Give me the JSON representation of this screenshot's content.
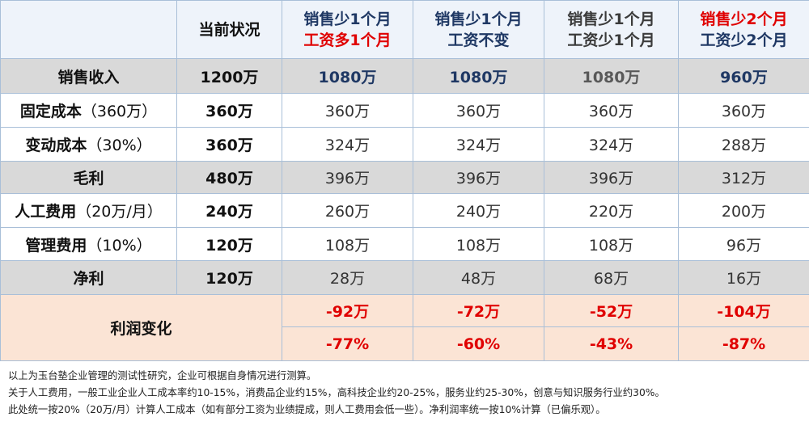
{
  "table": {
    "columns": [
      {
        "line1": "当前状况"
      },
      {
        "line1": "销售少1个月",
        "line2": "工资多1个月"
      },
      {
        "line1": "销售少1个月",
        "line2": "工资不变"
      },
      {
        "line1": "销售少1个月",
        "line2": "工资少1个月"
      },
      {
        "line1": "销售少2个月",
        "line2": "工资少2个月"
      }
    ],
    "rows": [
      {
        "name": "销售收入",
        "values": [
          "1200万",
          "1080万",
          "1080万",
          "1080万",
          "960万"
        ]
      },
      {
        "name": "固定成本",
        "note": "（360万）",
        "values": [
          "360万",
          "360万",
          "360万",
          "360万",
          "360万"
        ]
      },
      {
        "name": "变动成本",
        "note": "（30%）",
        "values": [
          "360万",
          "324万",
          "324万",
          "324万",
          "288万"
        ]
      },
      {
        "name": "毛利",
        "values": [
          "480万",
          "396万",
          "396万",
          "396万",
          "312万"
        ]
      },
      {
        "name": "人工费用",
        "note": "（20万/月）",
        "values": [
          "240万",
          "260万",
          "240万",
          "220万",
          "200万"
        ]
      },
      {
        "name": "管理费用",
        "note": "（10%）",
        "values": [
          "120万",
          "108万",
          "108万",
          "108万",
          "96万"
        ]
      },
      {
        "name": "净利",
        "values": [
          "120万",
          "28万",
          "48万",
          "68万",
          "16万"
        ]
      }
    ],
    "change": {
      "name": "利润变化",
      "rows": [
        [
          "-92万",
          "-72万",
          "-52万",
          "-104万"
        ],
        [
          "-77%",
          "-60%",
          "-43%",
          "-87%"
        ]
      ]
    }
  },
  "notes": [
    "以上为玉台塾企业管理的测试性研究，企业可根据自身情况进行测算。",
    "关于人工费用，一般工业企业人工成本率约10-15%，消费品企业约15%，高科技企业约20-25%，服务业约25-30%，创意与知识服务行业约30%。",
    "此处统一按20%（20万/月）计算人工成本（如有部分工资为业绩提成，则人工费用会低一些）。净利润率统一按10%计算（已偏乐观）。"
  ]
}
